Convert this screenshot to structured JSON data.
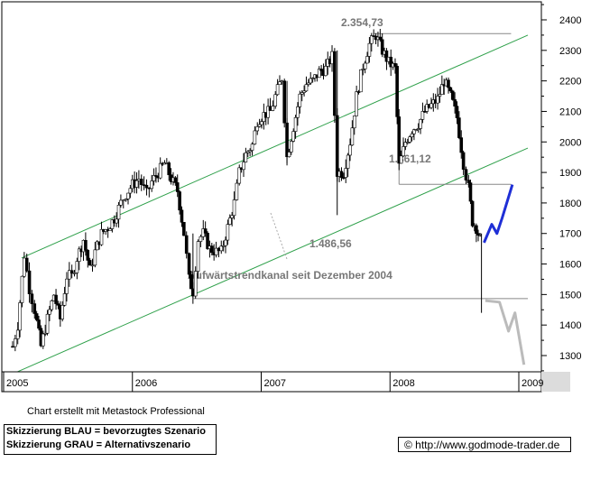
{
  "chart_data": {
    "type": "candlestick",
    "instrument_note": "",
    "x_ticks": [
      "2005",
      "2006",
      "2007",
      "2008",
      "2009"
    ],
    "y_ticks": [
      1300,
      1400,
      1500,
      1600,
      1700,
      1800,
      1900,
      2000,
      2100,
      2200,
      2300,
      2400
    ],
    "ylim": [
      1230,
      2450
    ],
    "xlim": [
      2005.0,
      2009.0
    ],
    "grid": false,
    "price_path": [
      [
        2005.0,
        1330
      ],
      [
        2005.04,
        1400
      ],
      [
        2005.09,
        1630
      ],
      [
        2005.13,
        1520
      ],
      [
        2005.17,
        1450
      ],
      [
        2005.22,
        1330
      ],
      [
        2005.27,
        1420
      ],
      [
        2005.32,
        1500
      ],
      [
        2005.37,
        1420
      ],
      [
        2005.42,
        1560
      ],
      [
        2005.46,
        1560
      ],
      [
        2005.5,
        1620
      ],
      [
        2005.55,
        1680
      ],
      [
        2005.6,
        1580
      ],
      [
        2005.64,
        1640
      ],
      [
        2005.69,
        1700
      ],
      [
        2005.74,
        1720
      ],
      [
        2005.79,
        1750
      ],
      [
        2005.84,
        1800
      ],
      [
        2005.88,
        1830
      ],
      [
        2005.93,
        1860
      ],
      [
        2005.98,
        1880
      ],
      [
        2006.04,
        1830
      ],
      [
        2006.08,
        1870
      ],
      [
        2006.13,
        1900
      ],
      [
        2006.18,
        1930
      ],
      [
        2006.23,
        1880
      ],
      [
        2006.28,
        1840
      ],
      [
        2006.33,
        1700
      ],
      [
        2006.37,
        1550
      ],
      [
        2006.4,
        1510
      ],
      [
        2006.44,
        1680
      ],
      [
        2006.48,
        1700
      ],
      [
        2006.53,
        1650
      ],
      [
        2006.58,
        1640
      ],
      [
        2006.62,
        1640
      ],
      [
        2006.67,
        1720
      ],
      [
        2006.72,
        1800
      ],
      [
        2006.76,
        1900
      ],
      [
        2006.81,
        1960
      ],
      [
        2006.86,
        1990
      ],
      [
        2006.9,
        2070
      ],
      [
        2006.95,
        2090
      ],
      [
        2007.0,
        2100
      ],
      [
        2007.04,
        2150
      ],
      [
        2007.09,
        2210
      ],
      [
        2007.13,
        1950
      ],
      [
        2007.18,
        2050
      ],
      [
        2007.23,
        2150
      ],
      [
        2007.28,
        2190
      ],
      [
        2007.33,
        2200
      ],
      [
        2007.38,
        2230
      ],
      [
        2007.43,
        2240
      ],
      [
        2007.48,
        2280
      ],
      [
        2007.52,
        1900
      ],
      [
        2007.57,
        1900
      ],
      [
        2007.62,
        2000
      ],
      [
        2007.67,
        2150
      ],
      [
        2007.72,
        2250
      ],
      [
        2007.77,
        2320
      ],
      [
        2007.82,
        2350
      ],
      [
        2007.87,
        2300
      ],
      [
        2007.92,
        2260
      ],
      [
        2007.97,
        2240
      ],
      [
        2008.0,
        1920
      ],
      [
        2008.05,
        2000
      ],
      [
        2008.1,
        2040
      ],
      [
        2008.15,
        2060
      ],
      [
        2008.2,
        2100
      ],
      [
        2008.25,
        2120
      ],
      [
        2008.3,
        2140
      ],
      [
        2008.35,
        2200
      ],
      [
        2008.4,
        2150
      ],
      [
        2008.45,
        2080
      ],
      [
        2008.5,
        1930
      ],
      [
        2008.54,
        1850
      ],
      [
        2008.57,
        1740
      ],
      [
        2008.6,
        1720
      ],
      [
        2008.63,
        1680
      ],
      [
        2008.65,
        1650
      ]
    ],
    "scenario_blue": [
      [
        2008.66,
        1670
      ],
      [
        2008.72,
        1730
      ],
      [
        2008.76,
        1700
      ],
      [
        2008.8,
        1750
      ],
      [
        2008.88,
        1860
      ]
    ],
    "scenario_grey": [
      [
        2008.67,
        1480
      ],
      [
        2008.78,
        1475
      ],
      [
        2008.85,
        1380
      ],
      [
        2008.9,
        1440
      ],
      [
        2008.97,
        1270
      ]
    ],
    "channel_upper": [
      [
        2005.07,
        1620
      ],
      [
        2009.0,
        2350
      ]
    ],
    "channel_lower": [
      [
        2005.0,
        1240
      ],
      [
        2009.0,
        1980
      ]
    ],
    "levels": [
      {
        "value": 2354.73,
        "label": "2.354,73",
        "x_from": 2007.8,
        "x_to": 2008.87
      },
      {
        "value": 1861.12,
        "label": "1.861,12",
        "x_from": 2008.0,
        "x_to": 2008.87
      },
      {
        "value": 1486.56,
        "label": "1.486,56",
        "x_from": 2006.4,
        "x_to": 2009.0
      }
    ],
    "annotation": "Aufwärtstrendkanal seit Dezember 2004",
    "colors": {
      "candles": "#000000",
      "channel": "#2ea04a",
      "levels": "#999999",
      "blue": "#1f2fd6",
      "grey": "#bbbbbb"
    }
  },
  "footer": {
    "credit": "Chart erstellt mit Metastock Professional",
    "legend_blue": "Skizzierung BLAU = bevorzugtes Szenario",
    "legend_grey": "Skizzierung GRAU = Alternativszenario",
    "url": "© http://www.godmode-trader.de"
  }
}
